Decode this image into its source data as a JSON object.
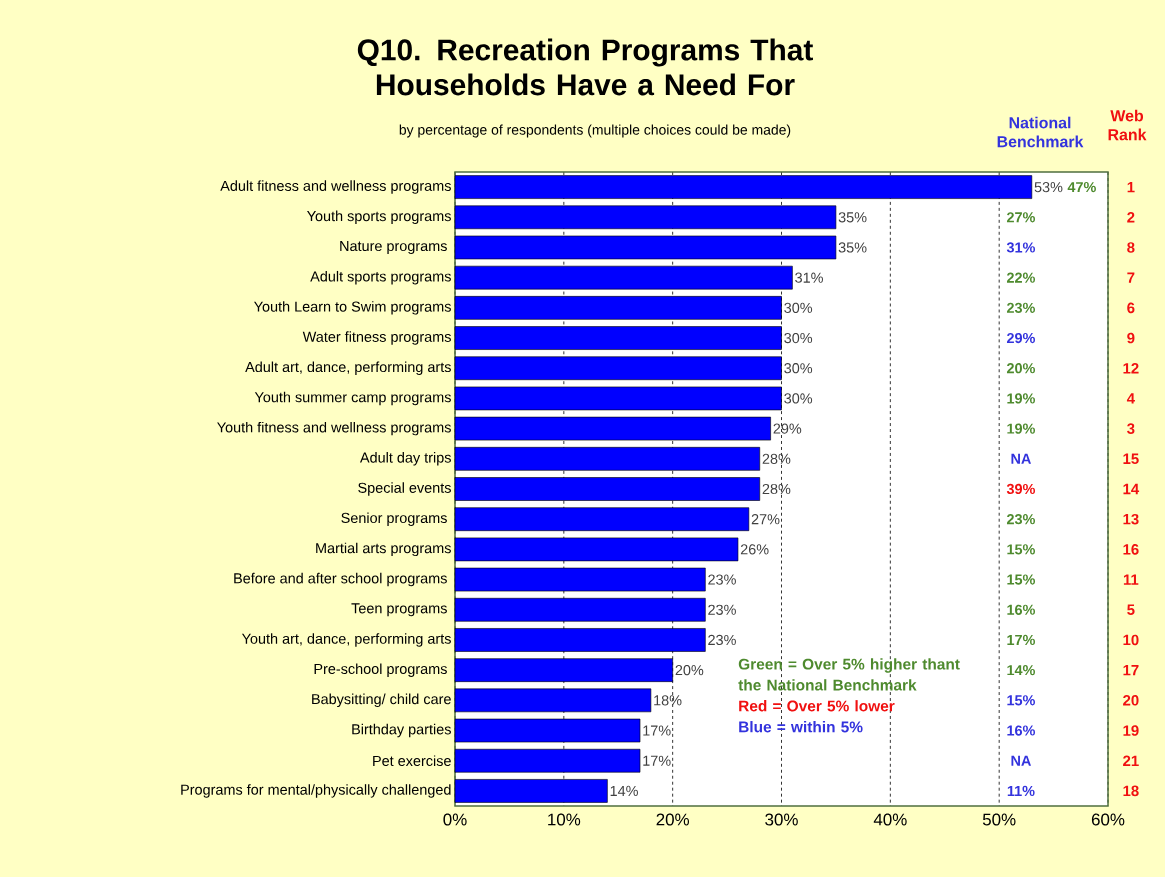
{
  "chart_data": {
    "type": "bar",
    "orientation": "horizontal",
    "title": "Q10. Recreation Programs That Households Have a Need For",
    "subtitle": "by percentage of respondents (multiple choices could be made)",
    "categories": [
      "Adult fitness and wellness programs",
      "Youth sports programs",
      "Nature programs ",
      "Adult sports programs",
      "Youth Learn to Swim programs",
      "Water fitness programs",
      "Adult art, dance, performing arts",
      "Youth summer camp programs",
      "Youth fitness and wellness programs",
      "Adult day trips",
      "Special events",
      "Senior programs ",
      "Martial arts programs",
      "Before and after school programs ",
      "Teen programs ",
      "Youth art, dance, performing arts",
      "Pre-school programs ",
      "Babysitting/ child care",
      "Birthday parties",
      "Pet exercise",
      "Programs for mental/physically challenged"
    ],
    "values": [
      53,
      35,
      35,
      31,
      30,
      30,
      30,
      30,
      29,
      28,
      28,
      27,
      26,
      23,
      23,
      23,
      20,
      18,
      17,
      17,
      14
    ],
    "value_labels": [
      "53%",
      "35%",
      "35%",
      "31%",
      "30%",
      "30%",
      "30%",
      "30%",
      "29%",
      "28%",
      "28%",
      "27%",
      "26%",
      "23%",
      "23%",
      "23%",
      "20%",
      "18%",
      "17%",
      "17%",
      "14%"
    ],
    "color": "#0000ff",
    "xlim": [
      0,
      60
    ],
    "xticks": [
      {
        "value": 0,
        "label": "0%"
      },
      {
        "value": 10,
        "label": "10%"
      },
      {
        "value": 20,
        "label": "20%"
      },
      {
        "value": 30,
        "label": "30%"
      },
      {
        "value": 40,
        "label": "40%"
      },
      {
        "value": 50,
        "label": "50%"
      },
      {
        "value": 60,
        "label": "60%"
      }
    ],
    "grid": "x",
    "annotations": [
      "National Benchmark",
      "Web Rank",
      "47%",
      "27%",
      "31%",
      "22%",
      "23%",
      "29%",
      "20%",
      "19%",
      "19%",
      "NA",
      "39%",
      "23%",
      "15%",
      "15%",
      "16%",
      "17%",
      "14%",
      "15%",
      "16%",
      "NA",
      "11%",
      "1",
      "2",
      "8",
      "7",
      "6",
      "9",
      "12",
      "4",
      "3",
      "15",
      "14",
      "13",
      "16",
      "11",
      "5",
      "10",
      "17",
      "20",
      "19",
      "21",
      "18",
      "Green = Over 5% higher thant the National Benchmark",
      "Red = Over 5% lower",
      "Blue = within 5%"
    ]
  }
}
